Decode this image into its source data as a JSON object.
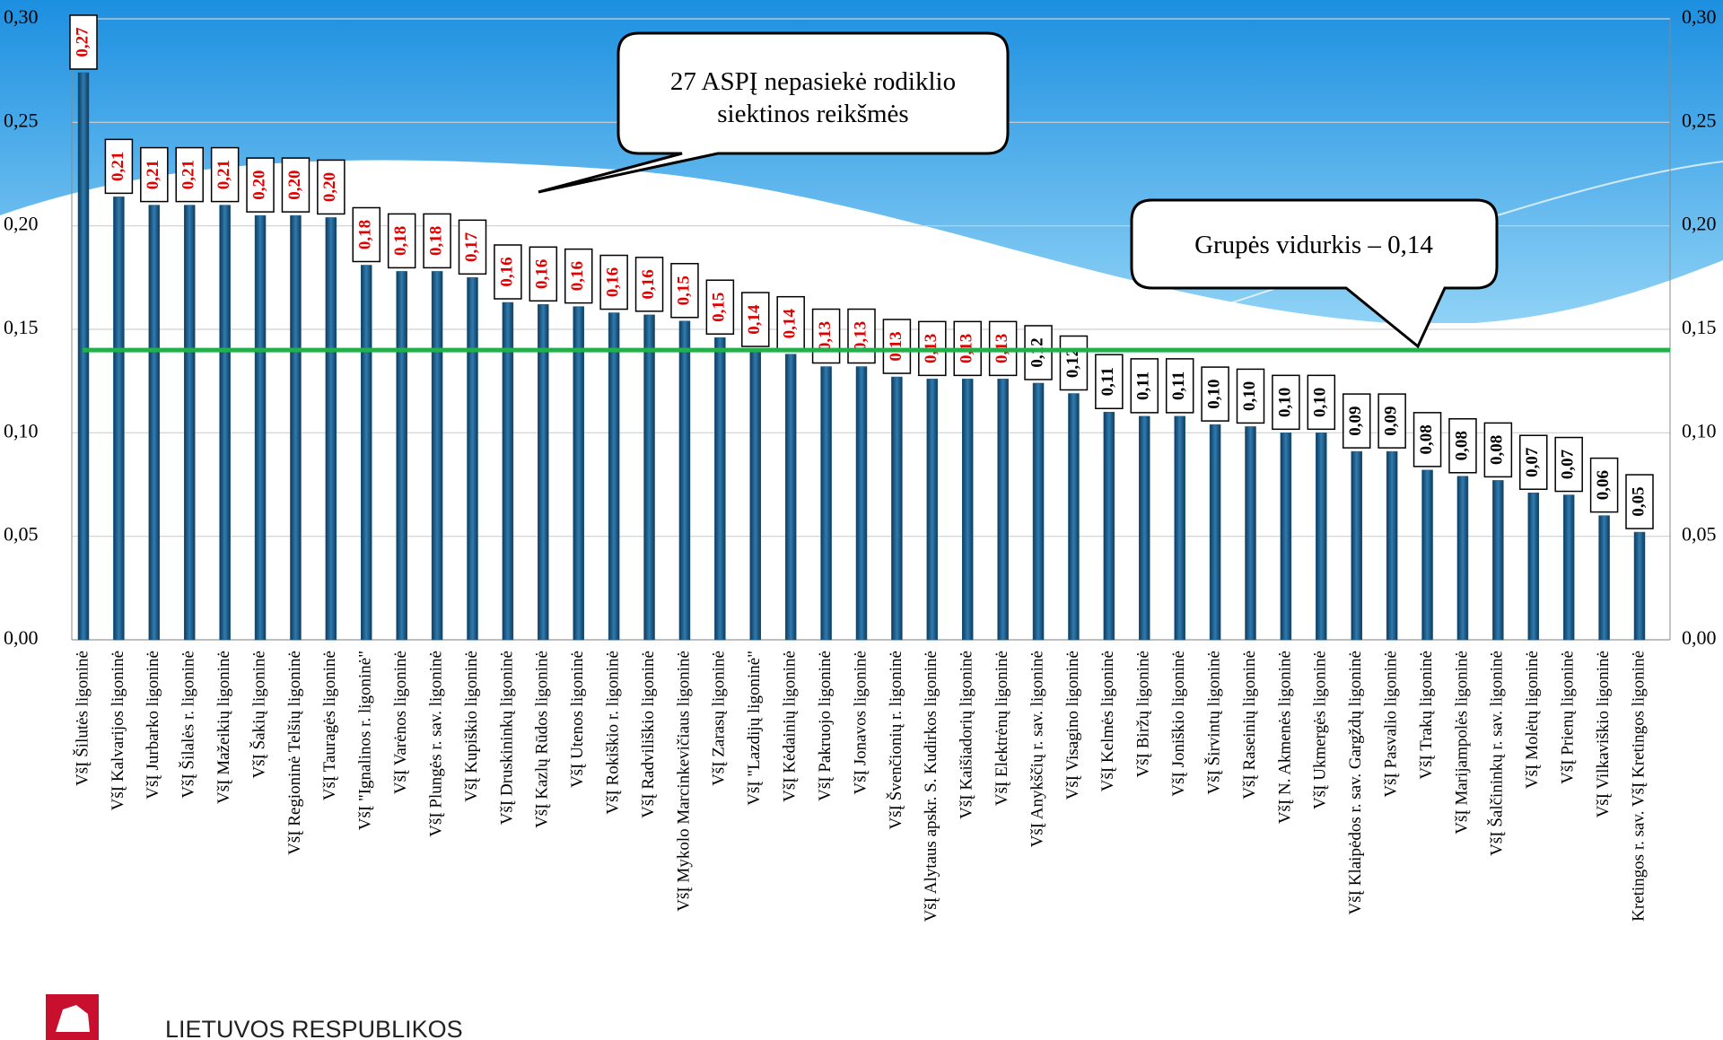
{
  "chart_data": {
    "type": "bar",
    "categories": [
      "VšĮ Šilutės ligoninė",
      "VšĮ Kalvarijos ligoninė",
      "VšĮ Jurbarko ligoninė",
      "VšĮ Šilalės r. ligoninė",
      "VšĮ Mažeikių ligoninė",
      "VšĮ Šakių ligoninė",
      "VšĮ Regioninė Telšių  ligoninė",
      "VšĮ Tauragės ligoninė",
      "VšĮ \"Ignalinos r. ligoninė\"",
      "VšĮ Varėnos ligoninė",
      "VšĮ Plungės r. sav. ligoninė",
      "VšĮ Kupiškio ligoninė",
      "VšĮ Druskininkų ligoninė",
      "VšĮ Kazlų Rūdos ligoninė",
      "VšĮ Utenos ligoninė",
      "VšĮ Rokiškio r. ligoninė",
      "VšĮ Radviliškio ligoninė",
      "VšĮ Mykolo Marcinkevičiaus ligoninė",
      "VšĮ Zarasų ligoninė",
      "VšĮ \"Lazdijų ligoninė\"",
      "VšĮ Kėdainių ligoninė",
      "VšĮ Pakruojo ligoninė",
      "VšĮ Jonavos ligoninė",
      "VšĮ Švenčionių r. ligoninė",
      "VšĮ Alytaus apskr. S. Kudirkos ligoninė",
      "VšĮ Kaišiadorių ligoninė",
      "VšĮ Elektrėnų ligoninė",
      "VšĮ Anykščių r. sav. ligoninė",
      "VšĮ Visagino ligoninė",
      "VšĮ Kelmės ligoninė",
      "VšĮ Biržų ligoninė",
      "VšĮ Joniškio ligoninė",
      "VšĮ Širvintų ligoninė",
      "VšĮ Raseinių ligoninė",
      "VšĮ N. Akmenės ligoninė",
      "VšĮ Ukmergės ligoninė",
      "VšĮ Klaipėdos r. sav. Gargždų ligoninė",
      "VšĮ Pasvalio ligoninė",
      "VšĮ Trakų ligoninė",
      "VšĮ Marijampolės ligoninė",
      "VšĮ Šalčininkų r. sav. ligoninė",
      "VšĮ Molėtų ligoninė",
      "VšĮ Prienų ligoninė",
      "VšĮ Vilkaviškio ligoninė",
      "Kretingos r. sav. VšĮ Kretingos ligoninė"
    ],
    "values": [
      0.274,
      0.214,
      0.21,
      0.21,
      0.21,
      0.205,
      0.205,
      0.204,
      0.181,
      0.178,
      0.178,
      0.175,
      0.163,
      0.162,
      0.161,
      0.158,
      0.157,
      0.154,
      0.146,
      0.14,
      0.138,
      0.132,
      0.132,
      0.127,
      0.126,
      0.126,
      0.126,
      0.124,
      0.119,
      0.11,
      0.108,
      0.108,
      0.104,
      0.103,
      0.1,
      0.1,
      0.091,
      0.091,
      0.082,
      0.079,
      0.077,
      0.071,
      0.07,
      0.06,
      0.052
    ],
    "value_labels": [
      "0,27",
      "0,21",
      "0,21",
      "0,21",
      "0,21",
      "0,20",
      "0,20",
      "0,20",
      "0,18",
      "0,18",
      "0,18",
      "0,17",
      "0,16",
      "0,16",
      "0,16",
      "0,16",
      "0,16",
      "0,15",
      "0,15",
      "0,14",
      "0,14",
      "0,13",
      "0,13",
      "0,13",
      "0,13",
      "0,13",
      "0,13",
      "0,12",
      "0,12",
      "0,11",
      "0,11",
      "0,11",
      "0,10",
      "0,10",
      "0,10",
      "0,10",
      "0,09",
      "0,09",
      "0,08",
      "0,08",
      "0,08",
      "0,07",
      "0,07",
      "0,06",
      "0,05"
    ],
    "label_colors": [
      "#e00000",
      "#e00000",
      "#e00000",
      "#e00000",
      "#e00000",
      "#e00000",
      "#e00000",
      "#e00000",
      "#e00000",
      "#e00000",
      "#e00000",
      "#e00000",
      "#e00000",
      "#e00000",
      "#e00000",
      "#e00000",
      "#e00000",
      "#e00000",
      "#e00000",
      "#e00000",
      "#e00000",
      "#e00000",
      "#e00000",
      "#e00000",
      "#e00000",
      "#e00000",
      "#e00000",
      "#000000",
      "#000000",
      "#000000",
      "#000000",
      "#000000",
      "#000000",
      "#000000",
      "#000000",
      "#000000",
      "#000000",
      "#000000",
      "#000000",
      "#000000",
      "#000000",
      "#000000",
      "#000000",
      "#000000",
      "#000000"
    ],
    "color": "#1d5a85",
    "ylim": [
      0,
      0.3
    ],
    "yticks": [
      {
        "value": 0,
        "label": "0,00"
      },
      {
        "value": 0.05,
        "label": "0,05"
      },
      {
        "value": 0.1,
        "label": "0,10"
      },
      {
        "value": 0.15,
        "label": "0,15"
      },
      {
        "value": 0.2,
        "label": "0,20"
      },
      {
        "value": 0.25,
        "label": "0,25"
      },
      {
        "value": 0.3,
        "label": "0,30"
      }
    ],
    "grid": true,
    "reference_line": {
      "value": 0.14,
      "label": "Grupės vidurkis – 0,14",
      "color": "#22b04a"
    },
    "annotation": "27 ASPĮ nepasiekė rodiklio siektinos reikšmės"
  },
  "footer": {
    "logo_text": "LIETUVOS RESPUBLIKOS"
  }
}
